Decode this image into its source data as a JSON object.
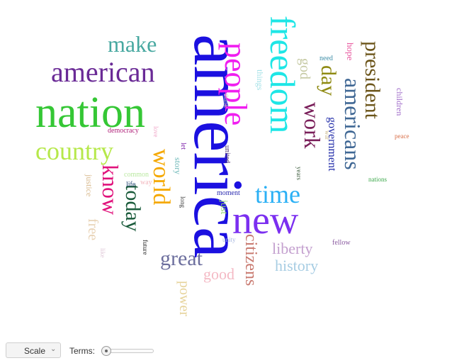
{
  "word_cloud": [
    {
      "text": "america",
      "color": "#1b10e0",
      "vertical": true
    },
    {
      "text": "nation",
      "color": "#35c735",
      "vertical": false
    },
    {
      "text": "new",
      "color": "#7b2ff0",
      "vertical": false
    },
    {
      "text": "people",
      "color": "#f01ef0",
      "vertical": true
    },
    {
      "text": "freedom",
      "color": "#1ee6e6",
      "vertical": true
    },
    {
      "text": "american",
      "color": "#6a2a96",
      "vertical": false
    },
    {
      "text": "country",
      "color": "#b6e84a",
      "vertical": false
    },
    {
      "text": "world",
      "color": "#f5a800",
      "vertical": true
    },
    {
      "text": "americans",
      "color": "#3f6794",
      "vertical": true
    },
    {
      "text": "president",
      "color": "#6b5419",
      "vertical": true
    },
    {
      "text": "know",
      "color": "#e0127b",
      "vertical": true
    },
    {
      "text": "today",
      "color": "#1a5b3b",
      "vertical": true
    },
    {
      "text": "time",
      "color": "#2bb0f5",
      "vertical": false
    },
    {
      "text": "make",
      "color": "#47a8a0",
      "vertical": false
    },
    {
      "text": "work",
      "color": "#7a1f5a",
      "vertical": true
    },
    {
      "text": "great",
      "color": "#6d6f9e",
      "vertical": false
    },
    {
      "text": "day",
      "color": "#8f8a12",
      "vertical": true
    },
    {
      "text": "citizens",
      "color": "#c97a70",
      "vertical": true
    },
    {
      "text": "liberty",
      "color": "#c4a0cf",
      "vertical": false
    },
    {
      "text": "history",
      "color": "#a7cde3",
      "vertical": false
    },
    {
      "text": "government",
      "color": "#1f2aa8",
      "vertical": true
    },
    {
      "text": "power",
      "color": "#e6d39a",
      "vertical": true
    },
    {
      "text": "good",
      "color": "#f4b9c4",
      "vertical": false
    },
    {
      "text": "god",
      "color": "#c5c9a2",
      "vertical": true
    },
    {
      "text": "free",
      "color": "#e8d2b4",
      "vertical": true
    },
    {
      "text": "just",
      "color": "#8ed26e",
      "vertical": true
    },
    {
      "text": "hope",
      "color": "#e85aa0",
      "vertical": true
    },
    {
      "text": "story",
      "color": "#6bb7b7",
      "vertical": true
    },
    {
      "text": "things",
      "color": "#9fe0e6",
      "vertical": true
    },
    {
      "text": "children",
      "color": "#9c66c7",
      "vertical": true
    },
    {
      "text": "justice",
      "color": "#d8b98d",
      "vertical": true
    },
    {
      "text": "common",
      "color": "#b9e8a0",
      "vertical": false
    },
    {
      "text": "need",
      "color": "#3f8fa8",
      "vertical": false
    },
    {
      "text": "let",
      "color": "#7b1fa8",
      "vertical": true
    },
    {
      "text": "united",
      "color": "#4a2f6e",
      "vertical": true
    },
    {
      "text": "moment",
      "color": "#2a2ab0",
      "vertical": false
    },
    {
      "text": "way",
      "color": "#f2b6bd",
      "vertical": false
    },
    {
      "text": "life",
      "color": "#1b3f6e",
      "vertical": false
    },
    {
      "text": "democracy",
      "color": "#b0227a",
      "vertical": false
    },
    {
      "text": "love",
      "color": "#f0a6c8",
      "vertical": true
    },
    {
      "text": "thank",
      "color": "#b8d0b8",
      "vertical": true
    },
    {
      "text": "long",
      "color": "#3a3a3a",
      "vertical": true
    },
    {
      "text": "years",
      "color": "#3a5a3a",
      "vertical": true
    },
    {
      "text": "war",
      "color": "#c9b68a",
      "vertical": true
    },
    {
      "text": "peace",
      "color": "#d9704a",
      "vertical": false
    },
    {
      "text": "nations",
      "color": "#3ca84a",
      "vertical": false
    },
    {
      "text": "fellow",
      "color": "#8a5aa0",
      "vertical": false
    },
    {
      "text": "unity",
      "color": "#a8b8e0",
      "vertical": false
    },
    {
      "text": "like",
      "color": "#e0c8d8",
      "vertical": true
    },
    {
      "text": "future",
      "color": "#2a2a2a",
      "vertical": true
    }
  ],
  "toolbar": {
    "scale_label": "Scale",
    "terms_label": "Terms:",
    "terms_slider_position": 0
  }
}
